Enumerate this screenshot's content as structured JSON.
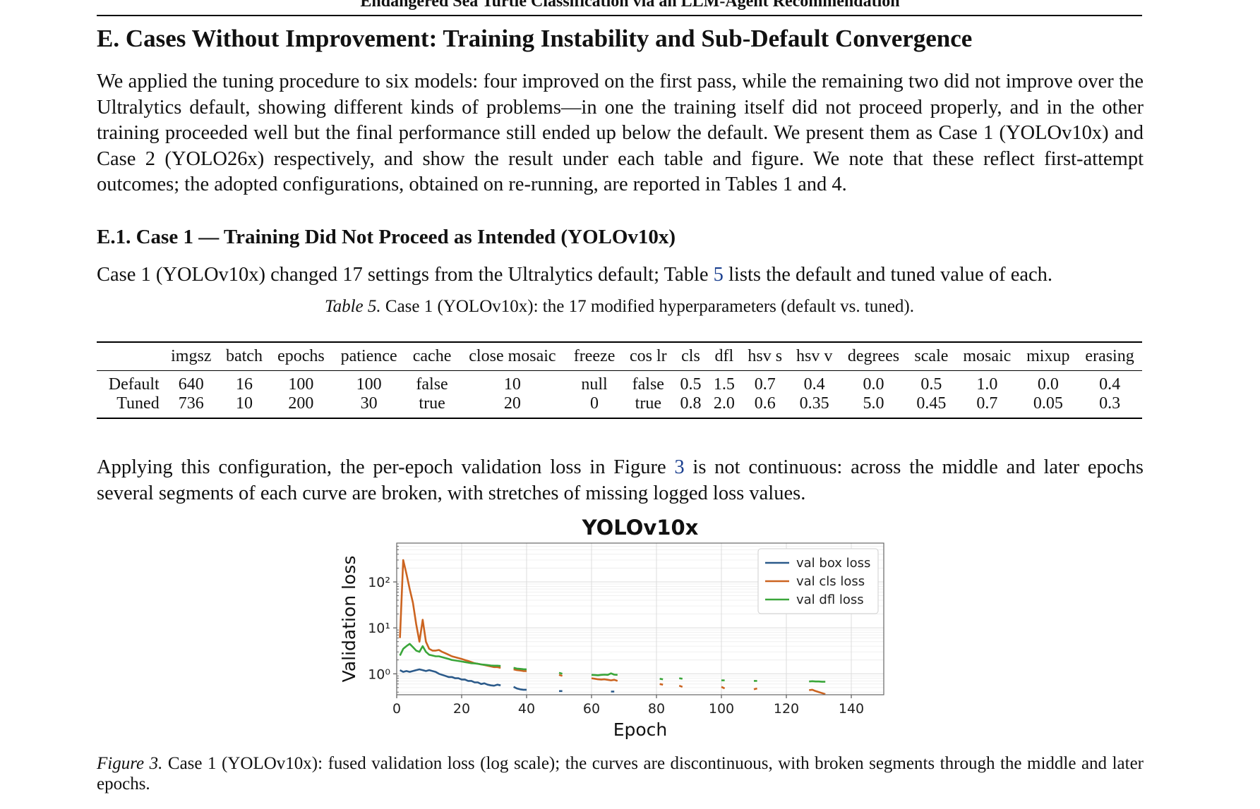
{
  "running_head": "Endangered Sea Turtle Classification via an LLM-Agent Recommendation",
  "section_title": "E. Cases Without Improvement: Training Instability and Sub-Default Convergence",
  "intro_paragraph": "We applied the tuning procedure to six models: four improved on the first pass, while the remaining two did not improve over the Ultralytics default, showing different kinds of problems—in one the training itself did not proceed properly, and in the other training proceeded well but the final performance still ended up below the default. We present them as Case 1 (YOLOv10x) and Case 2 (YOLO26x) respectively, and show the result under each table and figure. We note that these re­flect first-attempt outcomes; the adopted configurations, obtained on re-running, are reported in Tables 1 and 4.",
  "subsection_title": "E.1. Case 1 — Training Did Not Proceed as Intended (YOLOv10x)",
  "case_paragraph": {
    "before": "Case 1 (YOLOv10x) changed 17 settings from the Ultralytics default; Table ",
    "ref": "5",
    "after": " lists the default and tuned value of each."
  },
  "table_caption": {
    "label": "Table 5.",
    "text": " Case 1 (YOLOv10x): the 17 modified hyperparameters (default vs. tuned)."
  },
  "table": {
    "columns": [
      "",
      "imgsz",
      "batch",
      "epochs",
      "patience",
      "cache",
      "close mosaic",
      "freeze",
      "cos lr",
      "cls",
      "dfl",
      "hsv s",
      "hsv v",
      "degrees",
      "scale",
      "mosaic",
      "mixup",
      "erasing"
    ],
    "rows": [
      [
        "Default",
        "640",
        "16",
        "100",
        "100",
        "false",
        "10",
        "null",
        "false",
        "0.5",
        "1.5",
        "0.7",
        "0.4",
        "0.0",
        "0.5",
        "1.0",
        "0.0",
        "0.4"
      ],
      [
        "Tuned",
        "736",
        "10",
        "200",
        "30",
        "true",
        "20",
        "0",
        "true",
        "0.8",
        "2.0",
        "0.6",
        "0.35",
        "5.0",
        "0.45",
        "0.7",
        "0.05",
        "0.3"
      ]
    ]
  },
  "loss_paragraph": {
    "before": "Applying this configuration, the per-epoch validation loss in Figure ",
    "ref": "3",
    "after": " is not continuous: across the middle and later epochs several segments of each curve are broken, with stretches of missing logged loss values."
  },
  "figure_caption": {
    "label": "Figure 3.",
    "text": " Case 1 (YOLOv10x): fused validation loss (log scale); the curves are discontinuous, with broken segments through the middle and later epochs."
  },
  "chart_data": {
    "type": "line",
    "title": "YOLOv10x",
    "xlabel": "Epoch",
    "ylabel": "Validation loss",
    "yscale": "log",
    "xlim": [
      0,
      150
    ],
    "ylim": [
      0.35,
      700
    ],
    "xticks": [
      "0",
      "20",
      "40",
      "60",
      "80",
      "100",
      "120",
      "140"
    ],
    "yticks": [
      {
        "value": 1,
        "label": "10⁰"
      },
      {
        "value": 10,
        "label": "10¹"
      },
      {
        "value": 100,
        "label": "10²"
      }
    ],
    "grid": true,
    "legend_position": "top-right",
    "series": [
      {
        "name": "val box loss",
        "color": "#2b5a8a",
        "segments": [
          [
            [
              1,
              1.2
            ],
            [
              2,
              1.1
            ],
            [
              3,
              1.15
            ],
            [
              4,
              1.1
            ],
            [
              5,
              1.15
            ],
            [
              6,
              1.2
            ],
            [
              7,
              1.25
            ],
            [
              8,
              1.2
            ],
            [
              9,
              1.15
            ],
            [
              10,
              1.2
            ],
            [
              11,
              1.15
            ],
            [
              12,
              1.1
            ],
            [
              13,
              1.0
            ],
            [
              14,
              0.95
            ],
            [
              15,
              0.9
            ],
            [
              16,
              0.85
            ],
            [
              17,
              0.85
            ],
            [
              18,
              0.8
            ],
            [
              19,
              0.8
            ],
            [
              20,
              0.75
            ],
            [
              21,
              0.75
            ],
            [
              22,
              0.7
            ],
            [
              23,
              0.7
            ],
            [
              24,
              0.65
            ],
            [
              25,
              0.65
            ],
            [
              26,
              0.6
            ],
            [
              27,
              0.62
            ],
            [
              28,
              0.58
            ],
            [
              29,
              0.56
            ],
            [
              30,
              0.55
            ],
            [
              31,
              0.58
            ],
            [
              32,
              0.56
            ]
          ],
          [
            [
              36,
              0.52
            ],
            [
              37,
              0.48
            ],
            [
              38,
              0.46
            ],
            [
              39,
              0.45
            ],
            [
              40,
              0.45
            ]
          ],
          [
            [
              50,
              0.42
            ],
            [
              51,
              0.42
            ]
          ],
          [
            [
              66,
              0.41
            ],
            [
              67,
              0.41
            ]
          ]
        ]
      },
      {
        "name": "val cls loss",
        "color": "#cc6420",
        "segments": [
          [
            [
              1,
              6
            ],
            [
              2,
              300
            ],
            [
              3,
              150
            ],
            [
              4,
              70
            ],
            [
              5,
              35
            ],
            [
              6,
              12
            ],
            [
              7,
              5
            ],
            [
              8,
              15
            ],
            [
              9,
              5
            ],
            [
              10,
              3.5
            ],
            [
              11,
              3.2
            ],
            [
              12,
              3.2
            ],
            [
              13,
              3.3
            ],
            [
              14,
              3.0
            ],
            [
              15,
              2.8
            ],
            [
              16,
              2.6
            ],
            [
              17,
              2.4
            ],
            [
              18,
              2.3
            ],
            [
              19,
              2.2
            ],
            [
              20,
              2.1
            ],
            [
              21,
              2.0
            ],
            [
              22,
              1.9
            ],
            [
              23,
              1.8
            ],
            [
              24,
              1.7
            ],
            [
              25,
              1.65
            ],
            [
              26,
              1.6
            ],
            [
              27,
              1.55
            ],
            [
              28,
              1.5
            ],
            [
              29,
              1.45
            ],
            [
              30,
              1.4
            ],
            [
              31,
              1.4
            ],
            [
              32,
              1.35
            ]
          ],
          [
            [
              36,
              1.25
            ],
            [
              37,
              1.2
            ],
            [
              38,
              1.18
            ],
            [
              39,
              1.15
            ],
            [
              40,
              1.15
            ]
          ],
          [
            [
              50,
              0.95
            ],
            [
              51,
              0.9
            ]
          ],
          [
            [
              60,
              0.8
            ],
            [
              61,
              0.78
            ],
            [
              62,
              0.76
            ],
            [
              63,
              0.75
            ],
            [
              64,
              0.76
            ],
            [
              65,
              0.74
            ],
            [
              66,
              0.72
            ],
            [
              67,
              0.74
            ],
            [
              68,
              0.7
            ]
          ],
          [
            [
              81,
              0.6
            ],
            [
              82,
              0.58
            ]
          ],
          [
            [
              87,
              0.55
            ],
            [
              88,
              0.52
            ]
          ],
          [
            [
              100,
              0.52
            ],
            [
              101,
              0.48
            ]
          ],
          [
            [
              110,
              0.46
            ],
            [
              111,
              0.48
            ]
          ],
          [
            [
              127,
              0.44
            ],
            [
              128,
              0.45
            ],
            [
              129,
              0.42
            ],
            [
              130,
              0.4
            ],
            [
              131,
              0.38
            ],
            [
              132,
              0.36
            ]
          ]
        ]
      },
      {
        "name": "val dfl loss",
        "color": "#3aa63a",
        "segments": [
          [
            [
              1,
              2.5
            ],
            [
              2,
              3.5
            ],
            [
              3,
              4.0
            ],
            [
              4,
              4.5
            ],
            [
              5,
              3.8
            ],
            [
              6,
              3.2
            ],
            [
              7,
              3.0
            ],
            [
              8,
              4.0
            ],
            [
              9,
              3.0
            ],
            [
              10,
              2.6
            ],
            [
              11,
              2.5
            ],
            [
              12,
              2.4
            ],
            [
              13,
              2.4
            ],
            [
              14,
              2.3
            ],
            [
              15,
              2.2
            ],
            [
              16,
              2.1
            ],
            [
              17,
              2.0
            ],
            [
              18,
              1.95
            ],
            [
              19,
              1.9
            ],
            [
              20,
              1.85
            ],
            [
              21,
              1.8
            ],
            [
              22,
              1.75
            ],
            [
              23,
              1.7
            ],
            [
              24,
              1.68
            ],
            [
              25,
              1.65
            ],
            [
              26,
              1.6
            ],
            [
              27,
              1.58
            ],
            [
              28,
              1.55
            ],
            [
              29,
              1.52
            ],
            [
              30,
              1.5
            ],
            [
              31,
              1.5
            ],
            [
              32,
              1.48
            ]
          ],
          [
            [
              36,
              1.35
            ],
            [
              37,
              1.3
            ],
            [
              38,
              1.28
            ],
            [
              39,
              1.26
            ],
            [
              40,
              1.25
            ]
          ],
          [
            [
              50,
              1.05
            ],
            [
              51,
              1.0
            ]
          ],
          [
            [
              60,
              0.95
            ],
            [
              61,
              0.94
            ],
            [
              62,
              0.93
            ],
            [
              63,
              0.95
            ],
            [
              64,
              0.96
            ],
            [
              65,
              0.95
            ],
            [
              66,
              1.02
            ],
            [
              67,
              0.96
            ],
            [
              68,
              0.95
            ]
          ],
          [
            [
              81,
              0.78
            ],
            [
              82,
              0.76
            ]
          ],
          [
            [
              87,
              0.8
            ],
            [
              88,
              0.78
            ]
          ],
          [
            [
              100,
              0.72
            ],
            [
              101,
              0.72
            ]
          ],
          [
            [
              110,
              0.7
            ],
            [
              111,
              0.7
            ]
          ],
          [
            [
              127,
              0.68
            ],
            [
              128,
              0.69
            ],
            [
              129,
              0.68
            ],
            [
              130,
              0.68
            ],
            [
              131,
              0.67
            ],
            [
              132,
              0.67
            ]
          ]
        ]
      }
    ]
  }
}
